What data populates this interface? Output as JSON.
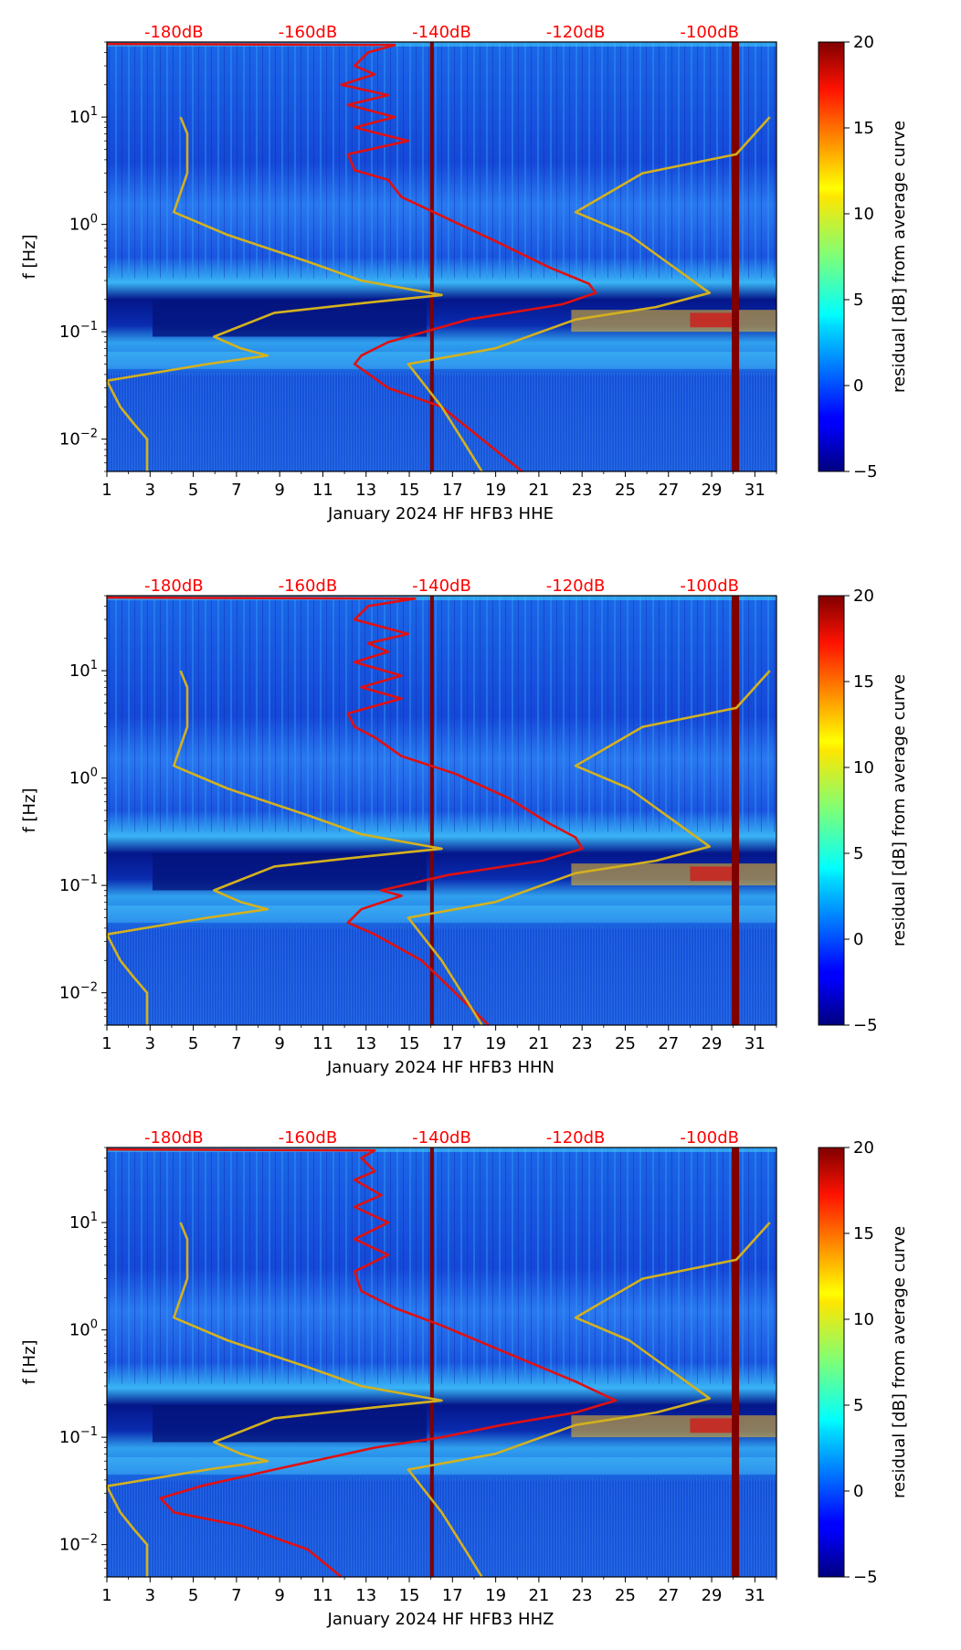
{
  "colorbar": {
    "label": "residual [dB] from average curve",
    "ticks": [
      -5,
      0,
      5,
      10,
      15,
      20
    ],
    "range": [
      -5,
      20
    ],
    "colormap": "jet"
  },
  "chart_data": [
    {
      "type": "heatmap",
      "xlabel": "January 2024 HF HFB3  HHE",
      "ylabel": "f [Hz]",
      "xticks": [
        1,
        3,
        5,
        7,
        9,
        11,
        13,
        15,
        17,
        19,
        21,
        23,
        25,
        27,
        29,
        31
      ],
      "yscale": "log",
      "ylim": [
        0.005,
        50
      ],
      "xlim": [
        1,
        32
      ],
      "top_axis_labels": [
        "-180dB",
        "-160dB",
        "-140dB",
        "-120dB",
        "-100dB"
      ],
      "top_axis_values": [
        -180,
        -160,
        -140,
        -120,
        -100
      ],
      "top_axis_range": [
        -190,
        -90
      ],
      "series": [
        {
          "color": "#e01010",
          "points": [
            [
              -190,
              48
            ],
            [
              -147,
              47
            ],
            [
              -151,
              40
            ],
            [
              -153,
              30
            ],
            [
              -150,
              25
            ],
            [
              -155,
              20
            ],
            [
              -148,
              16
            ],
            [
              -154,
              13
            ],
            [
              -147,
              10
            ],
            [
              -153,
              8
            ],
            [
              -145,
              6
            ],
            [
              -154,
              4.5
            ],
            [
              -153,
              3.2
            ],
            [
              -148,
              2.6
            ],
            [
              -146,
              1.8
            ],
            [
              -140,
              1.2
            ],
            [
              -132,
              0.7
            ],
            [
              -124,
              0.4
            ],
            [
              -118,
              0.28
            ],
            [
              -117,
              0.23
            ],
            [
              -122,
              0.18
            ],
            [
              -136,
              0.13
            ],
            [
              -148,
              0.08
            ],
            [
              -152,
              0.06
            ],
            [
              -153,
              0.05
            ],
            [
              -148,
              0.03
            ],
            [
              -140,
              0.02
            ],
            [
              -134,
              0.01
            ],
            [
              -128,
              0.005
            ]
          ]
        },
        {
          "color": "#d4b11e",
          "points": [
            [
              -179,
              10
            ],
            [
              -178,
              7
            ],
            [
              -178,
              3
            ],
            [
              -180,
              1.3
            ],
            [
              -172,
              0.8
            ],
            [
              -160,
              0.45
            ],
            [
              -152,
              0.3
            ],
            [
              -140,
              0.22
            ],
            [
              -150,
              0.19
            ],
            [
              -165,
              0.15
            ],
            [
              -174,
              0.09
            ],
            [
              -170,
              0.07
            ],
            [
              -166,
              0.06
            ],
            [
              -175,
              0.05
            ],
            [
              -190,
              0.035
            ],
            [
              -188,
              0.02
            ],
            [
              -186,
              0.014
            ],
            [
              -184,
              0.01
            ],
            [
              -184,
              0.005
            ]
          ]
        },
        {
          "color": "#d4b11e",
          "points": [
            [
              -91,
              10
            ],
            [
              -96,
              4.5
            ],
            [
              -110,
              3
            ],
            [
              -120,
              1.3
            ],
            [
              -112,
              0.8
            ],
            [
              -100,
              0.23
            ],
            [
              -108,
              0.17
            ],
            [
              -120,
              0.13
            ],
            [
              -132,
              0.07
            ],
            [
              -145,
              0.05
            ],
            [
              -140,
              0.02
            ],
            [
              -136,
              0.008
            ],
            [
              -134,
              0.005
            ]
          ]
        }
      ]
    },
    {
      "type": "heatmap",
      "xlabel": "January 2024 HF HFB3  HHN",
      "ylabel": "f [Hz]",
      "xticks": [
        1,
        3,
        5,
        7,
        9,
        11,
        13,
        15,
        17,
        19,
        21,
        23,
        25,
        27,
        29,
        31
      ],
      "yscale": "log",
      "ylim": [
        0.005,
        50
      ],
      "xlim": [
        1,
        32
      ],
      "top_axis_labels": [
        "-180dB",
        "-160dB",
        "-140dB",
        "-120dB",
        "-100dB"
      ],
      "top_axis_values": [
        -180,
        -160,
        -140,
        -120,
        -100
      ],
      "top_axis_range": [
        -190,
        -90
      ],
      "series": [
        {
          "color": "#e01010",
          "points": [
            [
              -190,
              48
            ],
            [
              -144,
              47
            ],
            [
              -151,
              40
            ],
            [
              -153,
              30
            ],
            [
              -145,
              22
            ],
            [
              -151,
              18
            ],
            [
              -148,
              15
            ],
            [
              -153,
              12
            ],
            [
              -146,
              9
            ],
            [
              -152,
              7
            ],
            [
              -146,
              5.5
            ],
            [
              -154,
              4
            ],
            [
              -153,
              3
            ],
            [
              -150,
              2.4
            ],
            [
              -146,
              1.6
            ],
            [
              -138,
              1.1
            ],
            [
              -130,
              0.65
            ],
            [
              -124,
              0.38
            ],
            [
              -120,
              0.28
            ],
            [
              -119,
              0.22
            ],
            [
              -125,
              0.17
            ],
            [
              -139,
              0.125
            ],
            [
              -149,
              0.09
            ],
            [
              -146,
              0.08
            ],
            [
              -152,
              0.06
            ],
            [
              -154,
              0.045
            ],
            [
              -150,
              0.035
            ],
            [
              -143,
              0.02
            ],
            [
              -138,
              0.01
            ],
            [
              -133,
              0.005
            ]
          ]
        },
        {
          "color": "#d4b11e",
          "points": [
            [
              -179,
              10
            ],
            [
              -178,
              7
            ],
            [
              -178,
              3
            ],
            [
              -180,
              1.3
            ],
            [
              -172,
              0.8
            ],
            [
              -160,
              0.45
            ],
            [
              -152,
              0.3
            ],
            [
              -140,
              0.22
            ],
            [
              -150,
              0.19
            ],
            [
              -165,
              0.15
            ],
            [
              -174,
              0.09
            ],
            [
              -170,
              0.07
            ],
            [
              -166,
              0.06
            ],
            [
              -175,
              0.05
            ],
            [
              -190,
              0.035
            ],
            [
              -188,
              0.02
            ],
            [
              -186,
              0.014
            ],
            [
              -184,
              0.01
            ],
            [
              -184,
              0.005
            ]
          ]
        },
        {
          "color": "#d4b11e",
          "points": [
            [
              -91,
              10
            ],
            [
              -96,
              4.5
            ],
            [
              -110,
              3
            ],
            [
              -120,
              1.3
            ],
            [
              -112,
              0.8
            ],
            [
              -100,
              0.23
            ],
            [
              -108,
              0.17
            ],
            [
              -120,
              0.13
            ],
            [
              -132,
              0.07
            ],
            [
              -145,
              0.05
            ],
            [
              -140,
              0.02
            ],
            [
              -136,
              0.008
            ],
            [
              -134,
              0.005
            ]
          ]
        }
      ]
    },
    {
      "type": "heatmap",
      "xlabel": "January 2024 HF HFB3  HHZ",
      "ylabel": "f [Hz]",
      "xticks": [
        1,
        3,
        5,
        7,
        9,
        11,
        13,
        15,
        17,
        19,
        21,
        23,
        25,
        27,
        29,
        31
      ],
      "yscale": "log",
      "ylim": [
        0.005,
        50
      ],
      "xlim": [
        1,
        32
      ],
      "top_axis_labels": [
        "-180dB",
        "-160dB",
        "-140dB",
        "-120dB",
        "-100dB"
      ],
      "top_axis_values": [
        -180,
        -160,
        -140,
        -120,
        -100
      ],
      "top_axis_range": [
        -190,
        -90
      ],
      "series": [
        {
          "color": "#e01010",
          "points": [
            [
              -190,
              48
            ],
            [
              -150,
              47
            ],
            [
              -152,
              40
            ],
            [
              -150,
              30
            ],
            [
              -153,
              25
            ],
            [
              -149,
              18
            ],
            [
              -153,
              14
            ],
            [
              -148,
              10
            ],
            [
              -153,
              7
            ],
            [
              -148,
              5
            ],
            [
              -153,
              3.5
            ],
            [
              -152,
              2.3
            ],
            [
              -147,
              1.6
            ],
            [
              -140,
              1.1
            ],
            [
              -130,
              0.6
            ],
            [
              -120,
              0.33
            ],
            [
              -114,
              0.22
            ],
            [
              -120,
              0.17
            ],
            [
              -131,
              0.13
            ],
            [
              -140,
              0.1
            ],
            [
              -150,
              0.08
            ],
            [
              -165,
              0.05
            ],
            [
              -176,
              0.035
            ],
            [
              -182,
              0.027
            ],
            [
              -180,
              0.02
            ],
            [
              -170,
              0.015
            ],
            [
              -160,
              0.009
            ],
            [
              -155,
              0.005
            ]
          ]
        },
        {
          "color": "#d4b11e",
          "points": [
            [
              -179,
              10
            ],
            [
              -178,
              7
            ],
            [
              -178,
              3
            ],
            [
              -180,
              1.3
            ],
            [
              -172,
              0.8
            ],
            [
              -160,
              0.45
            ],
            [
              -152,
              0.3
            ],
            [
              -140,
              0.22
            ],
            [
              -150,
              0.19
            ],
            [
              -165,
              0.15
            ],
            [
              -174,
              0.09
            ],
            [
              -170,
              0.07
            ],
            [
              -166,
              0.06
            ],
            [
              -175,
              0.05
            ],
            [
              -190,
              0.035
            ],
            [
              -188,
              0.02
            ],
            [
              -186,
              0.014
            ],
            [
              -184,
              0.01
            ],
            [
              -184,
              0.005
            ]
          ]
        },
        {
          "color": "#d4b11e",
          "points": [
            [
              -91,
              10
            ],
            [
              -96,
              4.5
            ],
            [
              -110,
              3
            ],
            [
              -120,
              1.3
            ],
            [
              -112,
              0.8
            ],
            [
              -100,
              0.23
            ],
            [
              -108,
              0.17
            ],
            [
              -120,
              0.13
            ],
            [
              -132,
              0.07
            ],
            [
              -145,
              0.05
            ],
            [
              -140,
              0.02
            ],
            [
              -136,
              0.008
            ],
            [
              -134,
              0.005
            ]
          ]
        }
      ]
    }
  ]
}
